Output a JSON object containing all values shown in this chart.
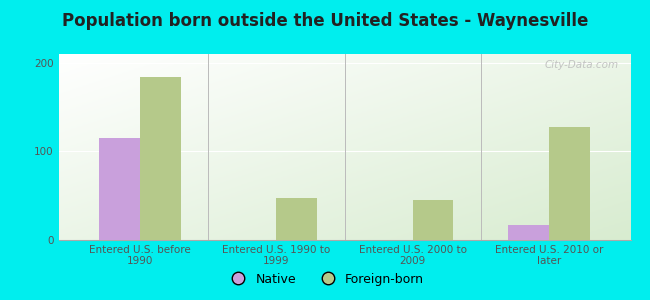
{
  "title": "Population born outside the United States - Waynesville",
  "categories": [
    "Entered U.S. before\n1990",
    "Entered U.S. 1990 to\n1999",
    "Entered U.S. 2000 to\n2009",
    "Entered U.S. 2010 or\nlater"
  ],
  "native_values": [
    115,
    0,
    0,
    17
  ],
  "foreign_values": [
    184,
    47,
    45,
    128
  ],
  "native_color": "#c9a0dc",
  "foreign_color": "#b5c98a",
  "outer_background": "#00eeee",
  "ylim": [
    0,
    210
  ],
  "yticks": [
    0,
    100,
    200
  ],
  "bar_width": 0.3,
  "title_fontsize": 12,
  "tick_fontsize": 7.5,
  "legend_labels": [
    "Native",
    "Foreign-born"
  ],
  "watermark": "City-Data.com"
}
